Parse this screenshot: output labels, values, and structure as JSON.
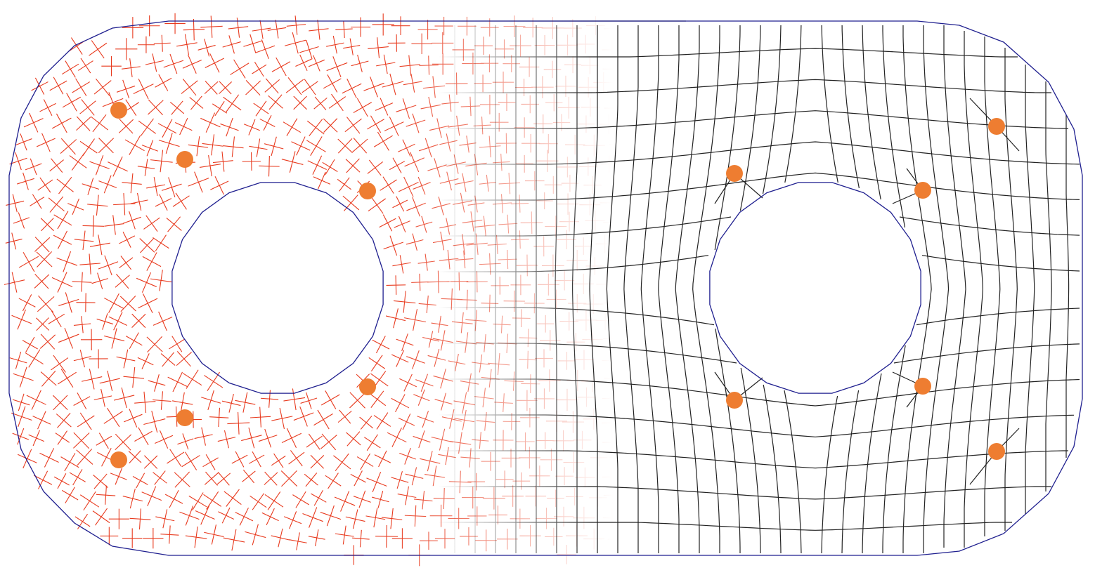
{
  "figure": {
    "description_visible_text": "",
    "colors": {
      "boundary": "#1f1f8f",
      "cross_field": "#e83a1e",
      "mesh_lines": "#222222",
      "singularities": "#ee7d31",
      "background": "#ffffff"
    },
    "regions": [
      {
        "name": "cross-field-region",
        "kind": "cross-field"
      },
      {
        "name": "blend-region",
        "kind": "transition"
      },
      {
        "name": "quad-mesh-region",
        "kind": "quad-mesh"
      }
    ],
    "holes": [
      {
        "name": "left-hole",
        "sides": 20
      },
      {
        "name": "right-hole",
        "sides": 20
      }
    ],
    "singularity_count": 12
  }
}
